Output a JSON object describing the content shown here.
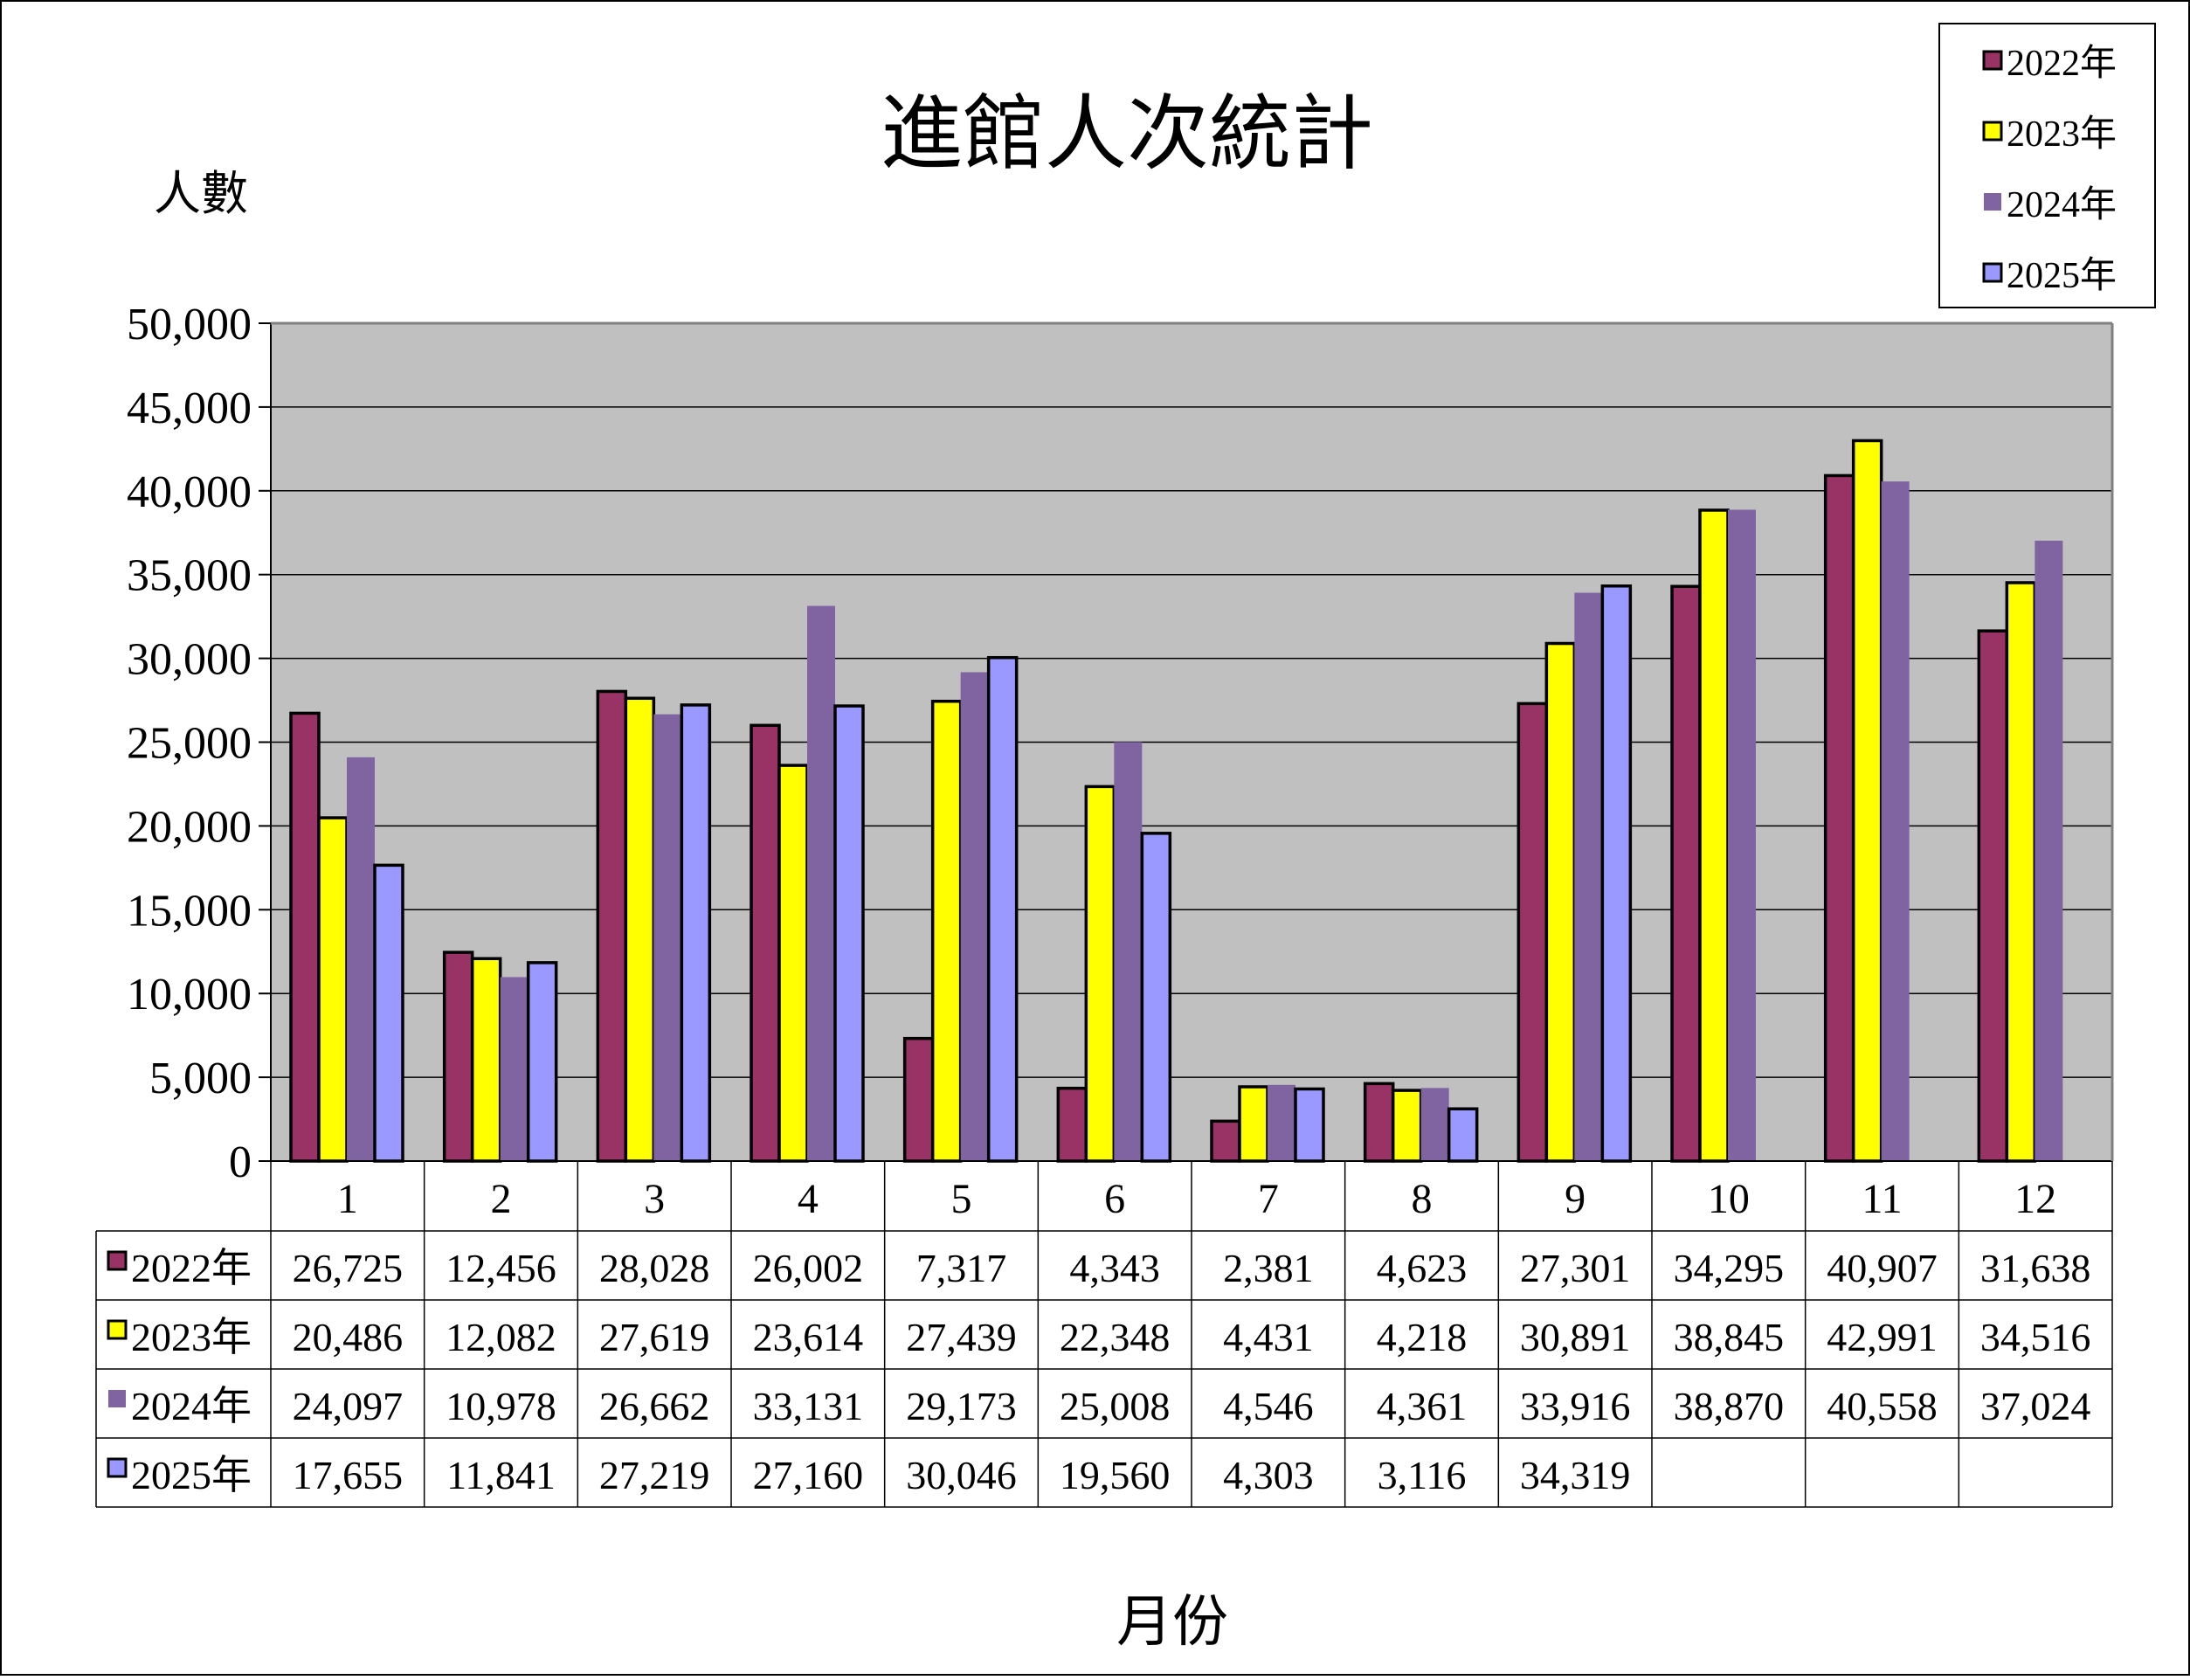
{
  "chart_data": {
    "type": "bar",
    "title": "進館人次統計",
    "ylabel": "人數",
    "xlabel": "月份",
    "ylim": [
      0,
      50000
    ],
    "ytick_step": 5000,
    "y_tick_labels": [
      "0",
      "5,000",
      "10,000",
      "15,000",
      "20,000",
      "25,000",
      "30,000",
      "35,000",
      "40,000",
      "45,000",
      "50,000"
    ],
    "grid": true,
    "legend_position": "top-right",
    "plot_background": "#c0c0c0",
    "categories": [
      "1",
      "2",
      "3",
      "4",
      "5",
      "6",
      "7",
      "8",
      "9",
      "10",
      "11",
      "12"
    ],
    "series": [
      {
        "name": "2022年",
        "color": "#993366",
        "outlined": true,
        "values": [
          26725,
          12456,
          28028,
          26002,
          7317,
          4343,
          2381,
          4623,
          27301,
          34295,
          40907,
          31638
        ],
        "labels": [
          "26,725",
          "12,456",
          "28,028",
          "26,002",
          "7,317",
          "4,343",
          "2,381",
          "4,623",
          "27,301",
          "34,295",
          "40,907",
          "31,638"
        ]
      },
      {
        "name": "2023年",
        "color": "#ffff00",
        "outlined": true,
        "values": [
          20486,
          12082,
          27619,
          23614,
          27439,
          22348,
          4431,
          4218,
          30891,
          38845,
          42991,
          34516
        ],
        "labels": [
          "20,486",
          "12,082",
          "27,619",
          "23,614",
          "27,439",
          "22,348",
          "4,431",
          "4,218",
          "30,891",
          "38,845",
          "42,991",
          "34,516"
        ]
      },
      {
        "name": "2024年",
        "color": "#8064a2",
        "outlined": false,
        "values": [
          24097,
          10978,
          26662,
          33131,
          29173,
          25008,
          4546,
          4361,
          33916,
          38870,
          40558,
          37024
        ],
        "labels": [
          "24,097",
          "10,978",
          "26,662",
          "33,131",
          "29,173",
          "25,008",
          "4,546",
          "4,361",
          "33,916",
          "38,870",
          "40,558",
          "37,024"
        ]
      },
      {
        "name": "2025年",
        "color": "#9999ff",
        "outlined": true,
        "values": [
          17655,
          11841,
          27219,
          27160,
          30046,
          19560,
          4303,
          3116,
          34319,
          null,
          null,
          null
        ],
        "labels": [
          "17,655",
          "11,841",
          "27,219",
          "27,160",
          "30,046",
          "19,560",
          "4,303",
          "3,116",
          "34,319",
          "",
          "",
          ""
        ]
      }
    ]
  }
}
